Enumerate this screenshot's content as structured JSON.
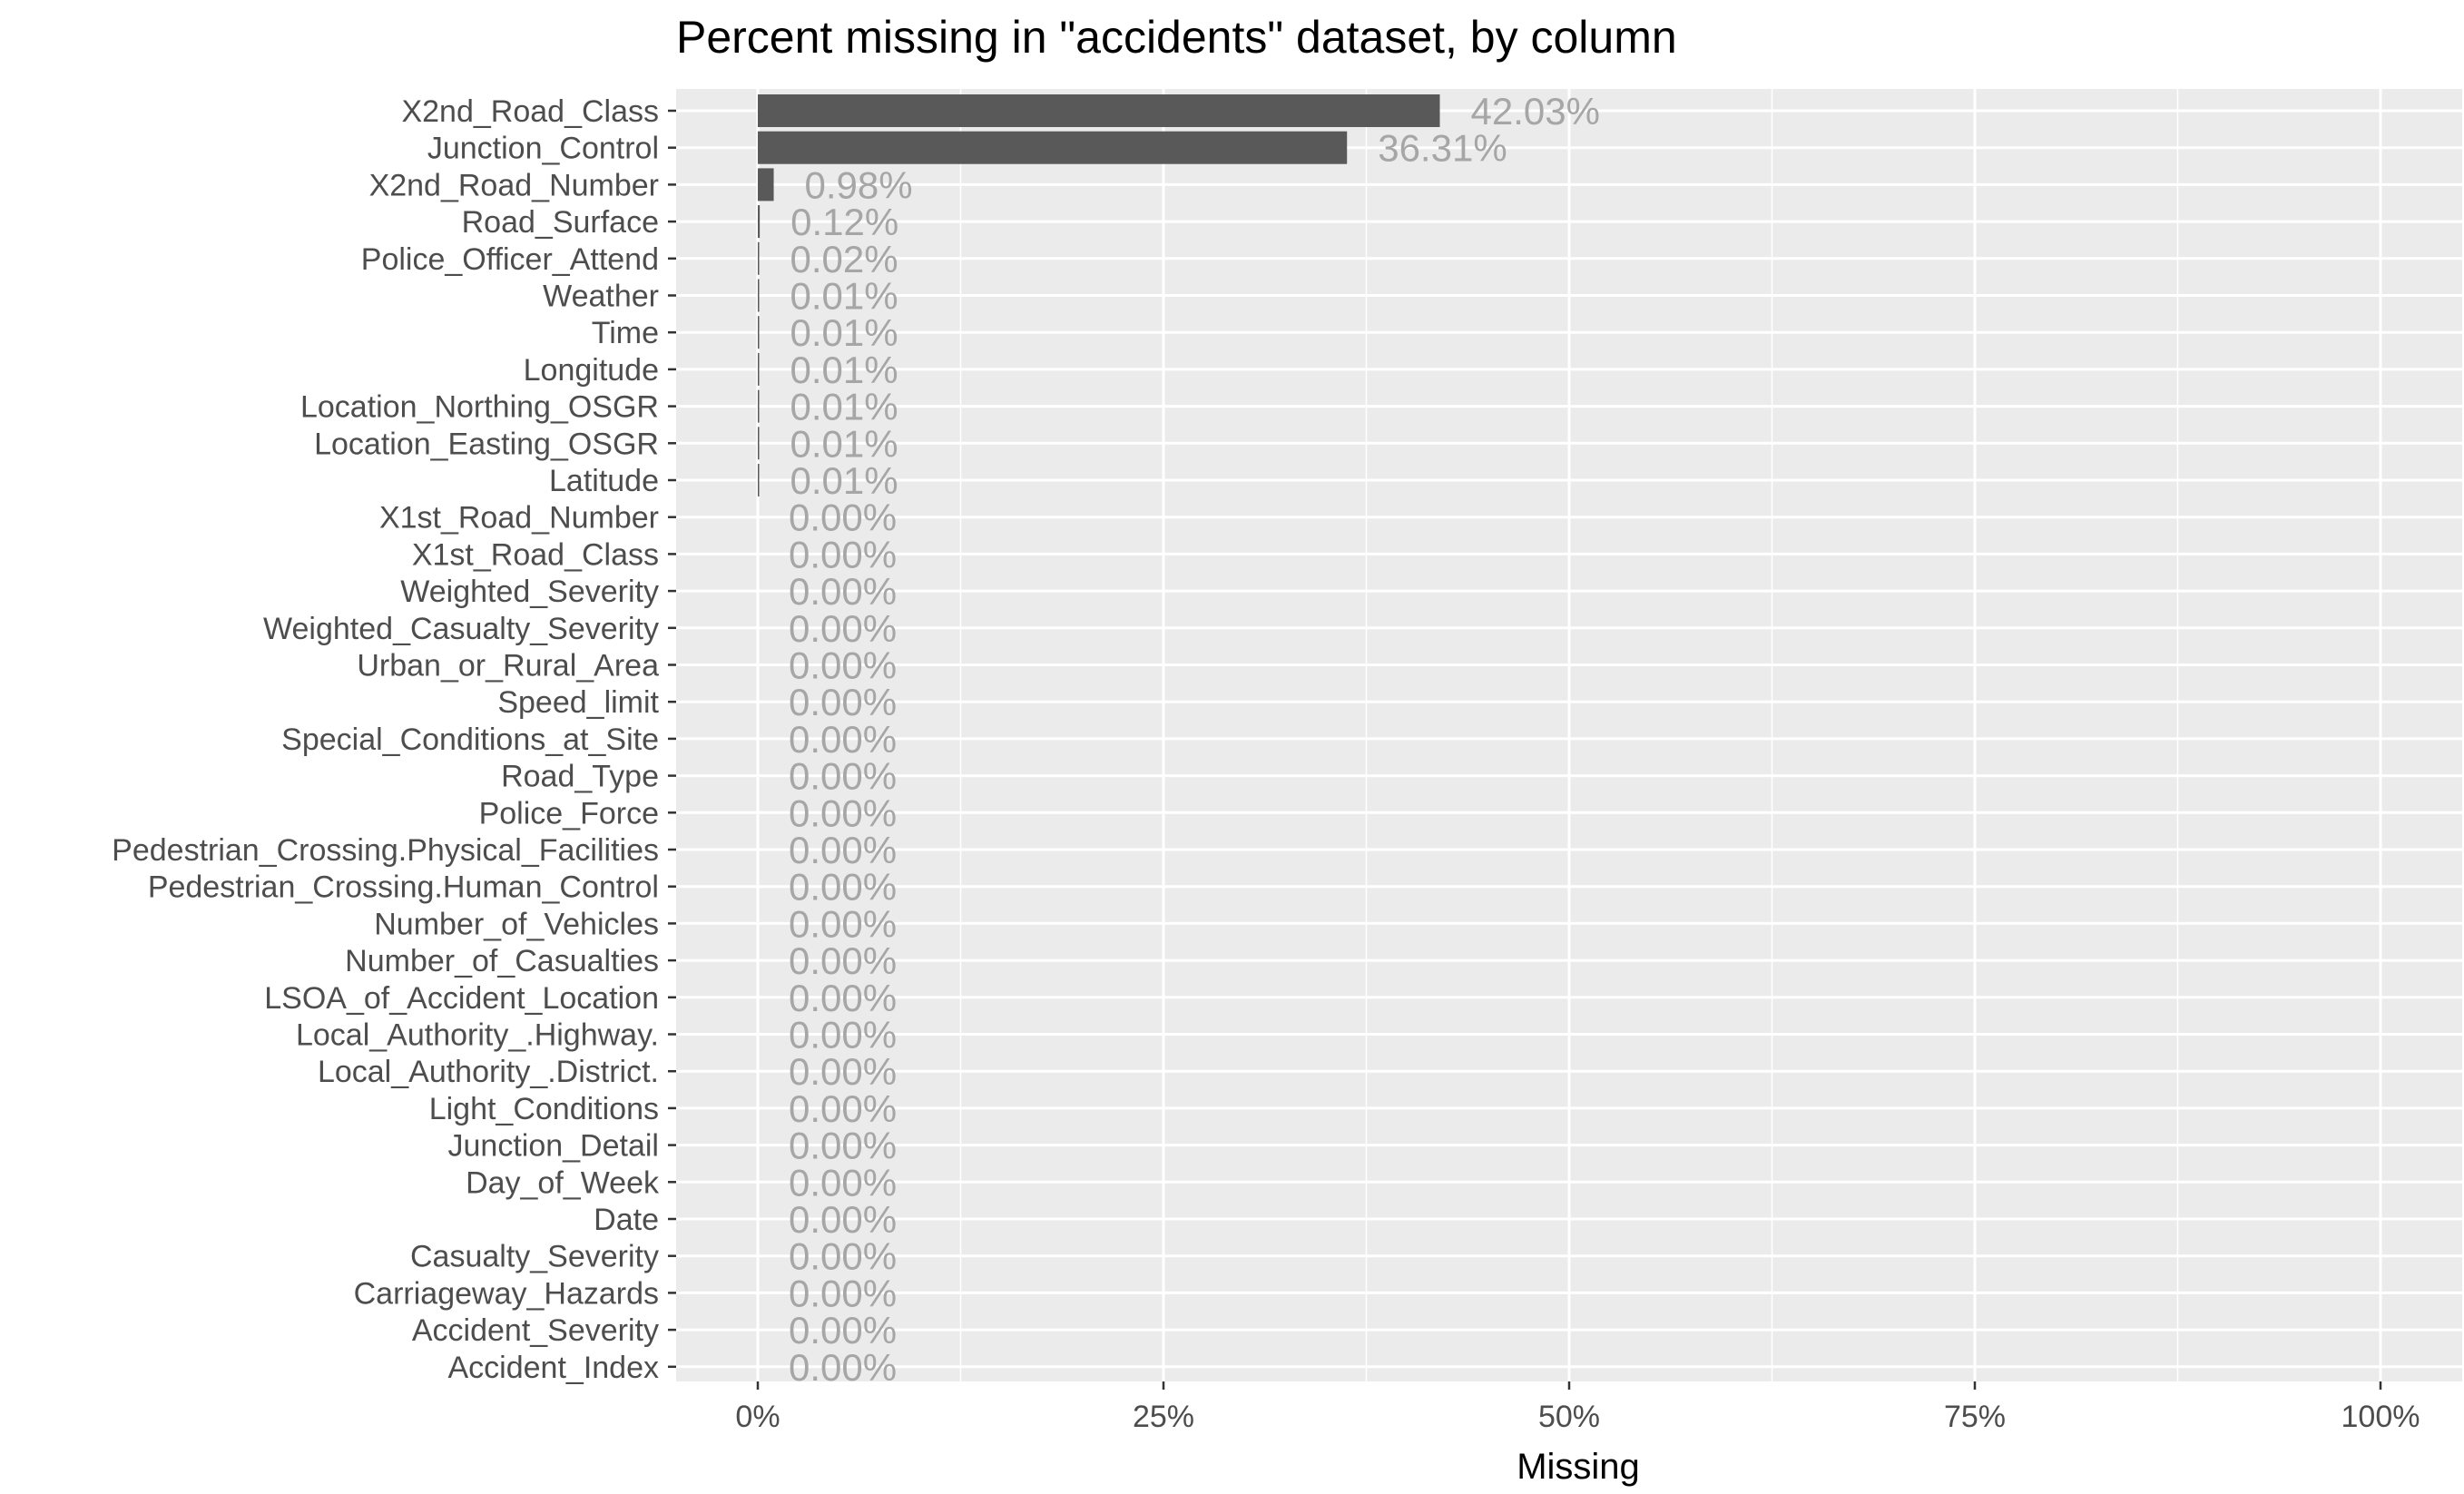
{
  "chart_data": {
    "type": "bar",
    "orientation": "horizontal",
    "title": "Percent missing in \"accidents\" dataset, by column",
    "xlabel": "Missing",
    "ylabel": "",
    "xlim": [
      0,
      100
    ],
    "x_ticks": [
      0,
      25,
      50,
      75,
      100
    ],
    "x_tick_labels": [
      "0%",
      "25%",
      "50%",
      "75%",
      "100%"
    ],
    "grid": true,
    "legend": "none",
    "colors": {
      "panel_background": "#ebebeb",
      "grid_line": "#ffffff",
      "bar_fill": "#595959",
      "data_label": "#a6a6a6",
      "tick_label": "#4d4d4d",
      "axis_title": "#000000"
    },
    "categories": [
      "X2nd_Road_Class",
      "Junction_Control",
      "X2nd_Road_Number",
      "Road_Surface",
      "Police_Officer_Attend",
      "Weather",
      "Time",
      "Longitude",
      "Location_Northing_OSGR",
      "Location_Easting_OSGR",
      "Latitude",
      "X1st_Road_Number",
      "X1st_Road_Class",
      "Weighted_Severity",
      "Weighted_Casualty_Severity",
      "Urban_or_Rural_Area",
      "Speed_limit",
      "Special_Conditions_at_Site",
      "Road_Type",
      "Police_Force",
      "Pedestrian_Crossing.Physical_Facilities",
      "Pedestrian_Crossing.Human_Control",
      "Number_of_Vehicles",
      "Number_of_Casualties",
      "LSOA_of_Accident_Location",
      "Local_Authority_.Highway.",
      "Local_Authority_.District.",
      "Light_Conditions",
      "Junction_Detail",
      "Day_of_Week",
      "Date",
      "Casualty_Severity",
      "Carriageway_Hazards",
      "Accident_Severity",
      "Accident_Index"
    ],
    "values": [
      42.03,
      36.31,
      0.98,
      0.12,
      0.02,
      0.01,
      0.01,
      0.01,
      0.01,
      0.01,
      0.01,
      0,
      0,
      0,
      0,
      0,
      0,
      0,
      0,
      0,
      0,
      0,
      0,
      0,
      0,
      0,
      0,
      0,
      0,
      0,
      0,
      0,
      0,
      0,
      0
    ],
    "data_labels": [
      "42.03%",
      "36.31%",
      "0.98%",
      "0.12%",
      "0.02%",
      "0.01%",
      "0.01%",
      "0.01%",
      "0.01%",
      "0.01%",
      "0.01%",
      "0.00%",
      "0.00%",
      "0.00%",
      "0.00%",
      "0.00%",
      "0.00%",
      "0.00%",
      "0.00%",
      "0.00%",
      "0.00%",
      "0.00%",
      "0.00%",
      "0.00%",
      "0.00%",
      "0.00%",
      "0.00%",
      "0.00%",
      "0.00%",
      "0.00%",
      "0.00%",
      "0.00%",
      "0.00%",
      "0.00%",
      "0.00%"
    ]
  }
}
